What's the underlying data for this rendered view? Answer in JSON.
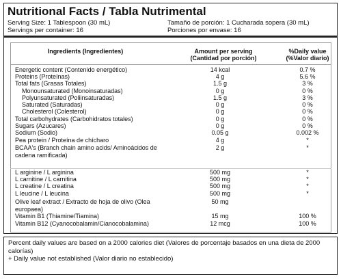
{
  "title": "Nutritional Facts / Tabla Nutrimental",
  "serving": {
    "size_en": "Serving Size: 1 Tablespoon (30 mL)",
    "size_es": "Tamaño de porción: 1 Cucharada sopera (30 mL)",
    "per_container_en": "Servings per container: 16",
    "per_container_es": "Porciones por envase: 16"
  },
  "table": {
    "header": {
      "ingredients": [
        "Ingredients (Ingredientes)"
      ],
      "amount": [
        "Amount per serving",
        "(Cantidad por porción)"
      ],
      "daily_value": [
        "%Daily value",
        "(%Valor diario)"
      ]
    },
    "rows": [
      {
        "name": "Energetic content (Contenido energético)",
        "amount": "14 kcal",
        "dv": "0.7 %"
      },
      {
        "name": "Proteins (Proteínas)",
        "amount": "4 g",
        "dv": "5.6 %"
      },
      {
        "name": "Total fats (Grasas Totales)",
        "amount": "1.5 g",
        "dv": "3 %"
      },
      {
        "name": "Monounsaturated (Monoinsaturadas)",
        "amount": "0 g",
        "dv": "0 %"
      },
      {
        "name": "Polyunsaturated (Poliinsaturadas)",
        "amount": "1.5 g",
        "dv": "3 %"
      },
      {
        "name": "Saturated (Saturadas)",
        "amount": "0 g",
        "dv": "0 %"
      },
      {
        "name": "Cholesterol (Colesterol)",
        "amount": "0 g",
        "dv": "0 %"
      },
      {
        "name": "Total carbohydrates (Carbohidratos totales)",
        "amount": "0 g",
        "dv": "0 %"
      },
      {
        "name": "Sugars (Azucares)",
        "amount": "0 g",
        "dv": "0 %"
      },
      {
        "name": "Sodium (Sodio)",
        "amount": "0.05 g",
        "dv": "0.002 %"
      },
      {
        "name": "Pea protein / Proteína de chícharo",
        "amount": "4 g",
        "dv": "*"
      },
      {
        "name": "BCAA's (Branch chain amino acids/ Aminoácidos de cadena ramificada)",
        "amount": "2 g",
        "dv": "*"
      },
      {
        "name": "L arginine / L arginina",
        "amount": "500 mg",
        "dv": "*"
      },
      {
        "name": "L carnitine / L carnitina",
        "amount": "500 mg",
        "dv": "*"
      },
      {
        "name": "L creatine / L creatina",
        "amount": "500 mg",
        "dv": "*"
      },
      {
        "name": "L leucine / L leucina",
        "amount": "500 mg",
        "dv": "*"
      },
      {
        "name": "Olive leaf extract / Extracto de hoja de olivo (Olea europaea)",
        "amount": "50 mg"
      },
      {
        "name": "Vitamin B1 (Thiamine/Tiamina)",
        "amount": "15 mg",
        "dv": "100 %"
      },
      {
        "name": "Vitamin B12 (Cyanocobalamin/Cianocobalamina)",
        "amount": "12 mcg",
        "dv": "100 %"
      }
    ]
  },
  "footer": {
    "note": "Percent daily values are based on a 2000 calories diet (Valores de porcentaje basados en una dieta de 2000 calorías)",
    "legend": "+ Daily value not established (Valor diario no establecido)"
  }
}
